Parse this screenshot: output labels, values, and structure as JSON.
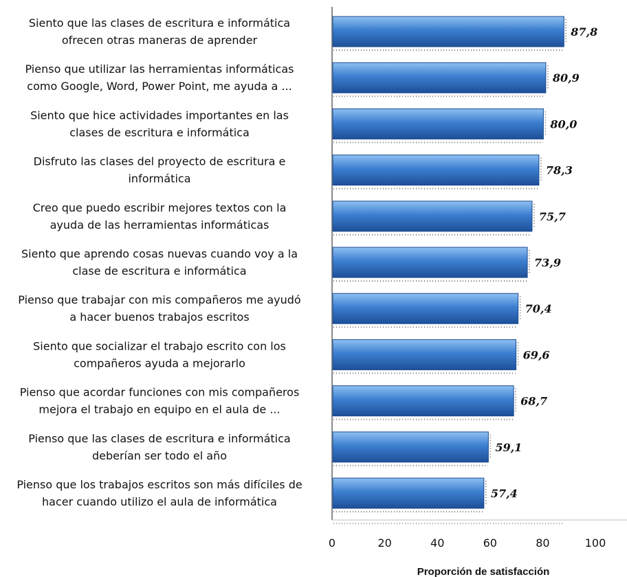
{
  "chart_data": {
    "type": "bar",
    "orientation": "horizontal",
    "categories": [
      [
        "Siento que las clases de escritura e informática",
        "ofrecen otras maneras de aprender"
      ],
      [
        "Pienso que utilizar las herramientas informáticas",
        "como Google, Word, Power Point, me ayuda a  ..."
      ],
      [
        "Siento que hice actividades importantes en las",
        "clases de escritura e informática"
      ],
      [
        "Disfruto las clases del proyecto de escritura e",
        "informática"
      ],
      [
        "Creo que puedo escribir mejores textos con la",
        "ayuda de las herramientas informáticas"
      ],
      [
        "Siento que aprendo cosas nuevas cuando voy a la",
        "clase de escritura e informática"
      ],
      [
        "Pienso que trabajar con mis compañeros me ayudó",
        "a hacer buenos trabajos escritos"
      ],
      [
        "Siento que socializar el trabajo escrito con los",
        "compañeros ayuda a mejorarlo"
      ],
      [
        "Pienso que acordar funciones con mis compañeros",
        "mejora el trabajo en equipo en el aula de  ..."
      ],
      [
        "Pienso que las clases de escritura e informática",
        "deberían ser todo el año"
      ],
      [
        "Pienso que los trabajos escritos son más difíciles de",
        "hacer cuando utilizo el aula de informática"
      ]
    ],
    "values": [
      87.8,
      80.9,
      80.0,
      78.3,
      75.7,
      73.9,
      70.4,
      69.6,
      68.7,
      59.1,
      57.4
    ],
    "value_labels": [
      "87,8",
      "80,9",
      "80,0",
      "78,3",
      "75,7",
      "73,9",
      "70,4",
      "69,6",
      "68,7",
      "59,1",
      "57,4"
    ],
    "xlabel": "Proporción de satisfacción",
    "xlim": [
      0,
      100
    ],
    "xticks": [
      "0",
      "20",
      "40",
      "60",
      "80",
      "100"
    ],
    "grid": false,
    "colors": {
      "bar": "#3d7fd0",
      "bar_dark": "#1d4f98",
      "bar_light": "#8fc0f2"
    }
  }
}
